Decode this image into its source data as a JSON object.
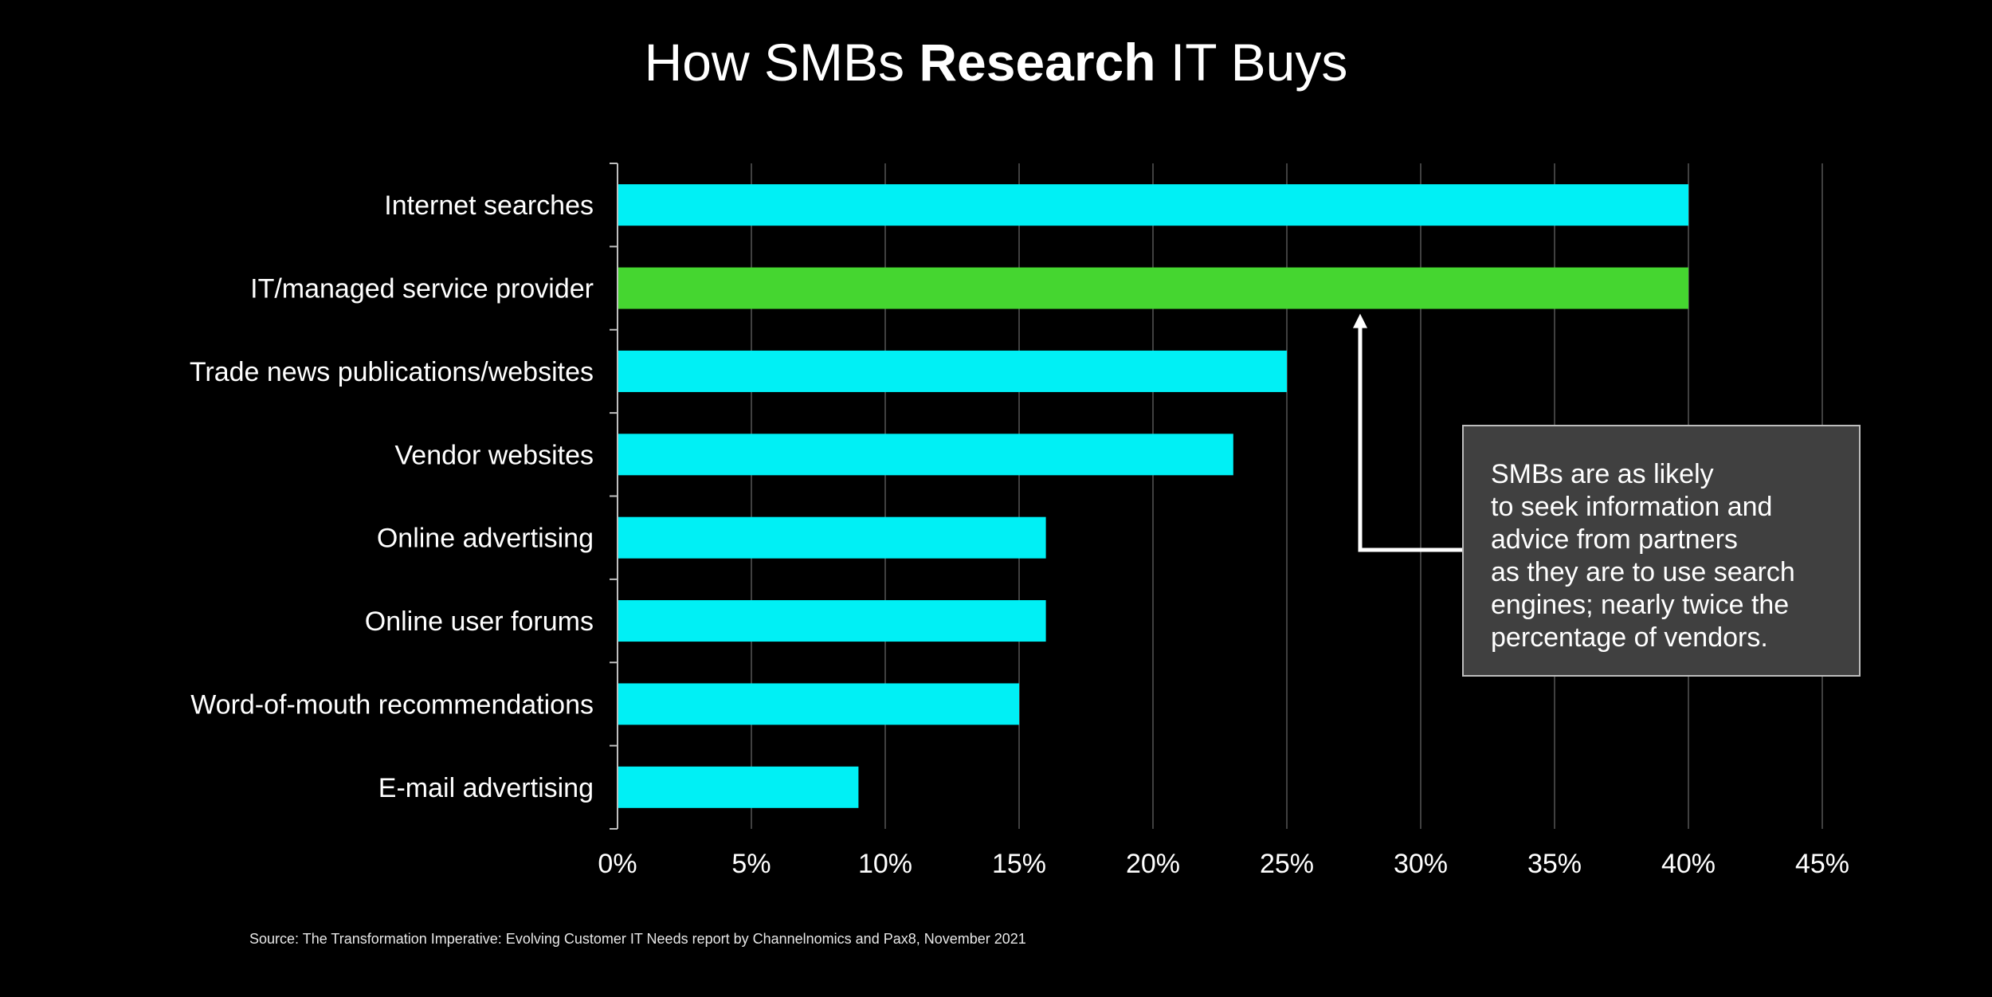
{
  "title": {
    "pre": "How SMBs ",
    "bold": "Research",
    "post": " IT Buys"
  },
  "callout": {
    "lines": [
      "SMBs are as likely",
      "to seek information and",
      "advice from partners",
      "as they are to use search",
      "engines; nearly twice the",
      "percentage of vendors."
    ]
  },
  "source": "Source: The Transformation Imperative: Evolving Customer IT Needs report by Channelnomics and Pax8, November 2021",
  "colors": {
    "background": "#000000",
    "bar": "#00F0F5",
    "highlight": "#45D630",
    "grid": "#555555",
    "callout_bg": "#404040"
  },
  "chart_data": {
    "type": "bar",
    "orientation": "horizontal",
    "categories": [
      "Internet searches",
      "IT/managed service provider",
      "Trade news publications/websites",
      "Vendor websites",
      "Online advertising",
      "Online user forums",
      "Word-of-mouth recommendations",
      "E-mail advertising"
    ],
    "values": [
      40,
      40,
      25,
      23,
      16,
      16,
      15,
      9
    ],
    "highlight_index": 1,
    "xlim": [
      0,
      45
    ],
    "xticks": [
      0,
      5,
      10,
      15,
      20,
      25,
      30,
      35,
      40,
      45
    ],
    "tick_labels": [
      "0%",
      "5%",
      "10%",
      "15%",
      "20%",
      "25%",
      "30%",
      "35%",
      "40%",
      "45%"
    ],
    "grid": true,
    "legend": "none"
  }
}
